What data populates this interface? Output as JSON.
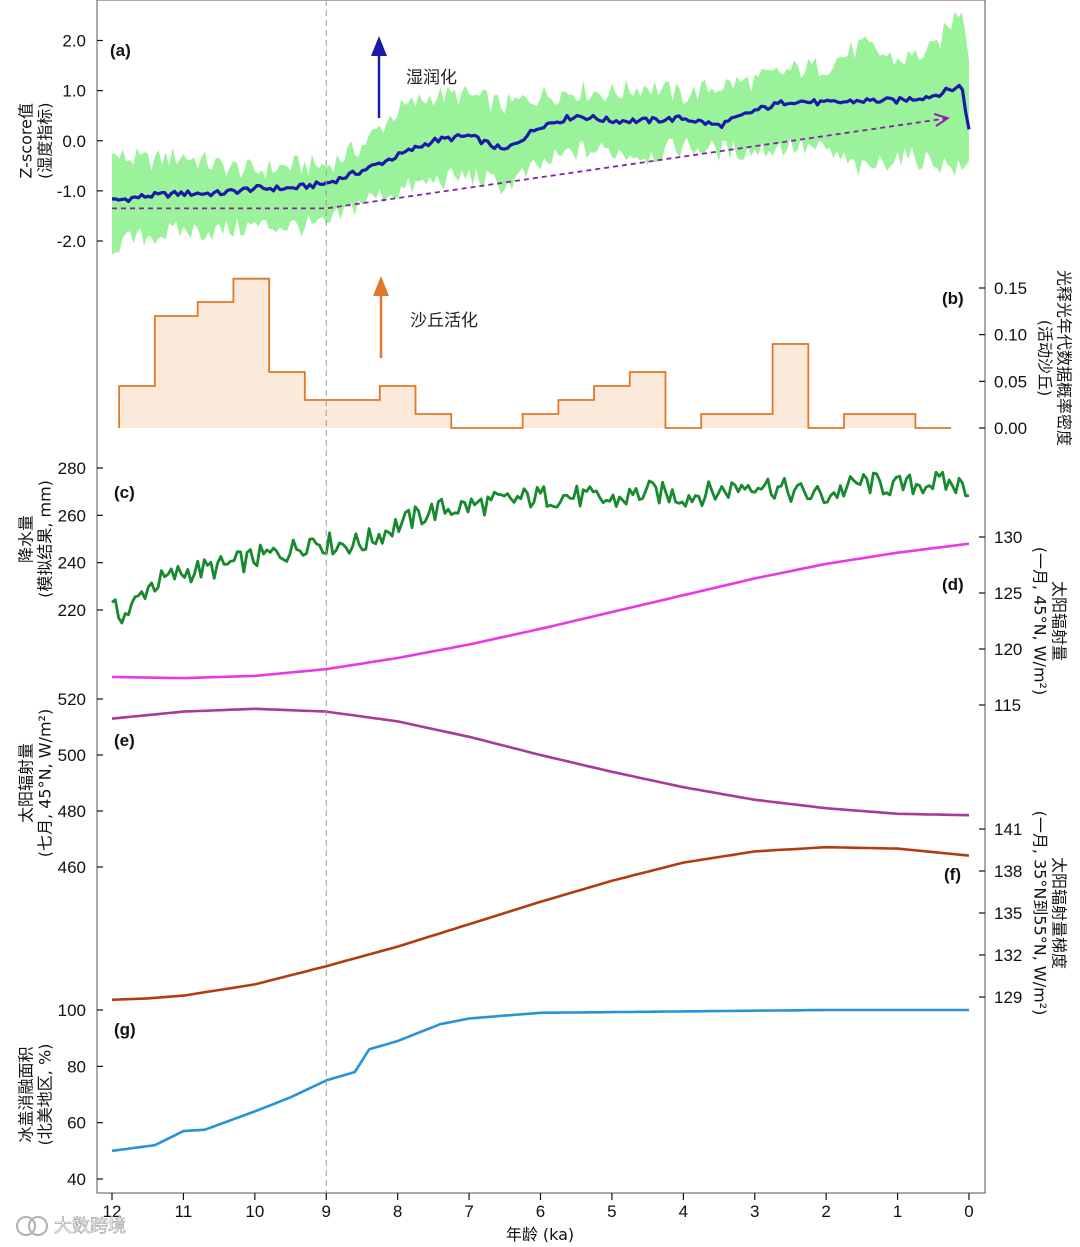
{
  "chart_data": {
    "type": "line",
    "x_axis": {
      "label": "年龄 (ka)",
      "ticks": [
        12,
        11,
        10,
        9,
        8,
        7,
        6,
        5,
        4,
        3,
        2,
        1,
        0
      ],
      "range": [
        12,
        0
      ],
      "reversed": true
    },
    "reference_line_x": 9,
    "panels": [
      {
        "id": "a",
        "label": "(a)",
        "type": "line",
        "ylabel": "Z-score值\n(湿度指标)",
        "yticks": [
          "2.0",
          "1.0",
          "0.0",
          "-1.0",
          "-2.0"
        ],
        "ylim": [
          -2.4,
          2.7
        ],
        "annotation": "湿润化",
        "series_color": "#1a1aa8",
        "band_color": "#8ff28f",
        "trend_color": "#8b1fa8",
        "series": [
          {
            "x": 12,
            "y": -1.2
          },
          {
            "x": 11.5,
            "y": -1.1
          },
          {
            "x": 11,
            "y": -1.05
          },
          {
            "x": 10.5,
            "y": -1.05
          },
          {
            "x": 10,
            "y": -0.95
          },
          {
            "x": 9.5,
            "y": -0.95
          },
          {
            "x": 9,
            "y": -0.85
          },
          {
            "x": 8.5,
            "y": -0.6
          },
          {
            "x": 8,
            "y": -0.3
          },
          {
            "x": 7.5,
            "y": 0.0
          },
          {
            "x": 7,
            "y": 0.1
          },
          {
            "x": 6.5,
            "y": -0.2
          },
          {
            "x": 6,
            "y": 0.3
          },
          {
            "x": 5.5,
            "y": 0.5
          },
          {
            "x": 5,
            "y": 0.4
          },
          {
            "x": 4.5,
            "y": 0.4
          },
          {
            "x": 4,
            "y": 0.45
          },
          {
            "x": 3.5,
            "y": 0.3
          },
          {
            "x": 3,
            "y": 0.6
          },
          {
            "x": 2.5,
            "y": 0.8
          },
          {
            "x": 2,
            "y": 0.75
          },
          {
            "x": 1.5,
            "y": 0.8
          },
          {
            "x": 1,
            "y": 0.8
          },
          {
            "x": 0.5,
            "y": 0.9
          },
          {
            "x": 0.1,
            "y": 1.1
          },
          {
            "x": 0,
            "y": 0.2
          }
        ],
        "band_upper": [
          {
            "x": 12,
            "y": -0.3
          },
          {
            "x": 11.5,
            "y": -0.4
          },
          {
            "x": 11,
            "y": -0.3
          },
          {
            "x": 10.5,
            "y": -0.5
          },
          {
            "x": 10,
            "y": -0.6
          },
          {
            "x": 9.5,
            "y": -0.5
          },
          {
            "x": 9,
            "y": -0.5
          },
          {
            "x": 8.5,
            "y": -0.1
          },
          {
            "x": 8,
            "y": 0.6
          },
          {
            "x": 7.5,
            "y": 0.9
          },
          {
            "x": 7,
            "y": 0.9
          },
          {
            "x": 6.5,
            "y": 0.7
          },
          {
            "x": 6,
            "y": 0.9
          },
          {
            "x": 5.5,
            "y": 1.0
          },
          {
            "x": 5,
            "y": 0.95
          },
          {
            "x": 4.5,
            "y": 1.1
          },
          {
            "x": 4,
            "y": 0.9
          },
          {
            "x": 3.5,
            "y": 1.1
          },
          {
            "x": 3,
            "y": 1.2
          },
          {
            "x": 2.5,
            "y": 1.4
          },
          {
            "x": 2,
            "y": 1.5
          },
          {
            "x": 1.5,
            "y": 1.9
          },
          {
            "x": 1,
            "y": 1.6
          },
          {
            "x": 0.5,
            "y": 1.8
          },
          {
            "x": 0.1,
            "y": 2.7
          },
          {
            "x": 0,
            "y": 1.8
          }
        ],
        "band_lower": [
          {
            "x": 12,
            "y": -2.1
          },
          {
            "x": 11.5,
            "y": -1.9
          },
          {
            "x": 11,
            "y": -1.8
          },
          {
            "x": 10.5,
            "y": -1.8
          },
          {
            "x": 10,
            "y": -1.7
          },
          {
            "x": 9.5,
            "y": -1.7
          },
          {
            "x": 9,
            "y": -1.7
          },
          {
            "x": 8.5,
            "y": -1.2
          },
          {
            "x": 8,
            "y": -1.0
          },
          {
            "x": 7.5,
            "y": -0.8
          },
          {
            "x": 7,
            "y": -0.7
          },
          {
            "x": 6.5,
            "y": -0.9
          },
          {
            "x": 6,
            "y": -0.5
          },
          {
            "x": 5.5,
            "y": -0.2
          },
          {
            "x": 5,
            "y": -0.2
          },
          {
            "x": 4.5,
            "y": -0.3
          },
          {
            "x": 4,
            "y": -0.1
          },
          {
            "x": 3.5,
            "y": -0.2
          },
          {
            "x": 3,
            "y": -0.2
          },
          {
            "x": 2.5,
            "y": -0.1
          },
          {
            "x": 2,
            "y": -0.2
          },
          {
            "x": 1.5,
            "y": -0.6
          },
          {
            "x": 1,
            "y": -0.3
          },
          {
            "x": 0.5,
            "y": -0.4
          },
          {
            "x": 0.1,
            "y": -0.6
          },
          {
            "x": 0,
            "y": -0.5
          }
        ],
        "trend": [
          {
            "x": 12,
            "y": -1.35
          },
          {
            "x": 9,
            "y": -1.35
          },
          {
            "x": 0.3,
            "y": 0.45
          }
        ]
      },
      {
        "id": "b",
        "label": "(b)",
        "type": "step-area",
        "ylabel": "光释光年代数据概率密度\n(活动沙丘)",
        "yticks": [
          "0.15",
          "0.10",
          "0.05",
          "0.00"
        ],
        "ylim": [
          0,
          0.175
        ],
        "annotation": "沙丘活化",
        "series_color": "#e0782a",
        "fill_color": "#fbe9d9",
        "steps": [
          {
            "x0": 11.9,
            "x1": 11.4,
            "y": 0.045
          },
          {
            "x0": 11.4,
            "x1": 10.8,
            "y": 0.12
          },
          {
            "x0": 10.8,
            "x1": 10.3,
            "y": 0.135
          },
          {
            "x0": 10.3,
            "x1": 9.8,
            "y": 0.16
          },
          {
            "x0": 9.8,
            "x1": 9.3,
            "y": 0.06
          },
          {
            "x0": 9.3,
            "x1": 8.25,
            "y": 0.03
          },
          {
            "x0": 8.25,
            "x1": 7.75,
            "y": 0.045
          },
          {
            "x0": 7.75,
            "x1": 7.25,
            "y": 0.015
          },
          {
            "x0": 7.25,
            "x1": 6.25,
            "y": 0.0
          },
          {
            "x0": 6.25,
            "x1": 5.75,
            "y": 0.015
          },
          {
            "x0": 5.75,
            "x1": 5.25,
            "y": 0.03
          },
          {
            "x0": 5.25,
            "x1": 4.75,
            "y": 0.045
          },
          {
            "x0": 4.75,
            "x1": 4.25,
            "y": 0.06
          },
          {
            "x0": 4.25,
            "x1": 3.75,
            "y": 0.0
          },
          {
            "x0": 3.75,
            "x1": 2.75,
            "y": 0.015
          },
          {
            "x0": 2.75,
            "x1": 2.25,
            "y": 0.09
          },
          {
            "x0": 2.25,
            "x1": 1.75,
            "y": 0.0
          },
          {
            "x0": 1.75,
            "x1": 0.75,
            "y": 0.015
          },
          {
            "x0": 0.75,
            "x1": 0.25,
            "y": 0.0
          }
        ]
      },
      {
        "id": "c",
        "label": "(c)",
        "type": "line",
        "ylabel": "降水量\n(模拟结果, mm)",
        "yticks": [
          "280",
          "260",
          "240",
          "220"
        ],
        "ylim": [
          208,
          292
        ],
        "series_color": "#178a2e",
        "series": [
          {
            "x": 12,
            "y": 220
          },
          {
            "x": 11.8,
            "y": 218
          },
          {
            "x": 11.5,
            "y": 230
          },
          {
            "x": 11,
            "y": 236
          },
          {
            "x": 10.5,
            "y": 238
          },
          {
            "x": 10,
            "y": 242
          },
          {
            "x": 9.5,
            "y": 245
          },
          {
            "x": 9.2,
            "y": 250
          },
          {
            "x": 9,
            "y": 248
          },
          {
            "x": 8.5,
            "y": 248
          },
          {
            "x": 8,
            "y": 256
          },
          {
            "x": 7.5,
            "y": 262
          },
          {
            "x": 7,
            "y": 264
          },
          {
            "x": 6.5,
            "y": 266
          },
          {
            "x": 6,
            "y": 268
          },
          {
            "x": 5.5,
            "y": 268
          },
          {
            "x": 5,
            "y": 266
          },
          {
            "x": 4.5,
            "y": 270
          },
          {
            "x": 4,
            "y": 268
          },
          {
            "x": 3.5,
            "y": 270
          },
          {
            "x": 3,
            "y": 274
          },
          {
            "x": 2.5,
            "y": 270
          },
          {
            "x": 2,
            "y": 268
          },
          {
            "x": 1.5,
            "y": 274
          },
          {
            "x": 1,
            "y": 272
          },
          {
            "x": 0.5,
            "y": 274
          },
          {
            "x": 0,
            "y": 272
          }
        ]
      },
      {
        "id": "d",
        "label": "(d)",
        "type": "line",
        "ylabel": "太阳辐射量\n(一月, 45°N, W/m²)",
        "yticks": [
          "130",
          "125",
          "120",
          "115"
        ],
        "ylim": [
          114,
          131
        ],
        "series_color": "#e83ae3",
        "series": [
          {
            "x": 12,
            "y": 117.5
          },
          {
            "x": 11,
            "y": 117.4
          },
          {
            "x": 10,
            "y": 117.6
          },
          {
            "x": 9,
            "y": 118.2
          },
          {
            "x": 8,
            "y": 119.2
          },
          {
            "x": 7,
            "y": 120.4
          },
          {
            "x": 6,
            "y": 121.8
          },
          {
            "x": 5,
            "y": 123.3
          },
          {
            "x": 4,
            "y": 124.8
          },
          {
            "x": 3,
            "y": 126.3
          },
          {
            "x": 2,
            "y": 127.6
          },
          {
            "x": 1,
            "y": 128.6
          },
          {
            "x": 0,
            "y": 129.4
          }
        ]
      },
      {
        "id": "e",
        "label": "(e)",
        "type": "line",
        "ylabel": "太阳辐射量\n(七月, 45°N, W/m²)",
        "yticks": [
          "520",
          "500",
          "480",
          "460"
        ],
        "ylim": [
          452,
          530
        ],
        "series_color": "#a73a9a",
        "series": [
          {
            "x": 12,
            "y": 513
          },
          {
            "x": 11,
            "y": 515.5
          },
          {
            "x": 10,
            "y": 516.5
          },
          {
            "x": 9,
            "y": 515.5
          },
          {
            "x": 8,
            "y": 512
          },
          {
            "x": 7,
            "y": 506.5
          },
          {
            "x": 6,
            "y": 500
          },
          {
            "x": 5,
            "y": 494
          },
          {
            "x": 4,
            "y": 488.5
          },
          {
            "x": 3,
            "y": 484
          },
          {
            "x": 2,
            "y": 481
          },
          {
            "x": 1,
            "y": 479
          },
          {
            "x": 0,
            "y": 478.5
          }
        ]
      },
      {
        "id": "f",
        "label": "(f)",
        "type": "line",
        "ylabel": "太阳辐射量梯度\n(一月, 35°N到55°N, W/m²)",
        "yticks": [
          "141",
          "138",
          "135",
          "132",
          "129"
        ],
        "ylim": [
          128,
          142.5
        ],
        "series_color": "#b23c12",
        "series": [
          {
            "x": 12,
            "y": 128.8
          },
          {
            "x": 11.5,
            "y": 128.9
          },
          {
            "x": 11,
            "y": 129.1
          },
          {
            "x": 10,
            "y": 129.9
          },
          {
            "x": 9,
            "y": 131.2
          },
          {
            "x": 8,
            "y": 132.6
          },
          {
            "x": 7,
            "y": 134.2
          },
          {
            "x": 6,
            "y": 135.8
          },
          {
            "x": 5,
            "y": 137.3
          },
          {
            "x": 4,
            "y": 138.6
          },
          {
            "x": 3,
            "y": 139.4
          },
          {
            "x": 2,
            "y": 139.7
          },
          {
            "x": 1,
            "y": 139.6
          },
          {
            "x": 0,
            "y": 139.1
          }
        ]
      },
      {
        "id": "g",
        "label": "(g)",
        "type": "line",
        "ylabel": "冰盖消融面积\n(北美地区, %)",
        "yticks": [
          "100",
          "80",
          "60",
          "40"
        ],
        "ylim": [
          37,
          104
        ],
        "series_color": "#2a93d8",
        "series": [
          {
            "x": 12,
            "y": 50
          },
          {
            "x": 11.4,
            "y": 52
          },
          {
            "x": 11,
            "y": 57
          },
          {
            "x": 10.7,
            "y": 57.5
          },
          {
            "x": 10,
            "y": 64
          },
          {
            "x": 9.5,
            "y": 69
          },
          {
            "x": 9,
            "y": 75
          },
          {
            "x": 8.6,
            "y": 78
          },
          {
            "x": 8.4,
            "y": 86
          },
          {
            "x": 8,
            "y": 89
          },
          {
            "x": 7.4,
            "y": 95
          },
          {
            "x": 7,
            "y": 97
          },
          {
            "x": 6,
            "y": 99
          },
          {
            "x": 4,
            "y": 99.5
          },
          {
            "x": 2,
            "y": 100
          },
          {
            "x": 0,
            "y": 100
          }
        ]
      }
    ]
  },
  "watermark": "大数跨境"
}
